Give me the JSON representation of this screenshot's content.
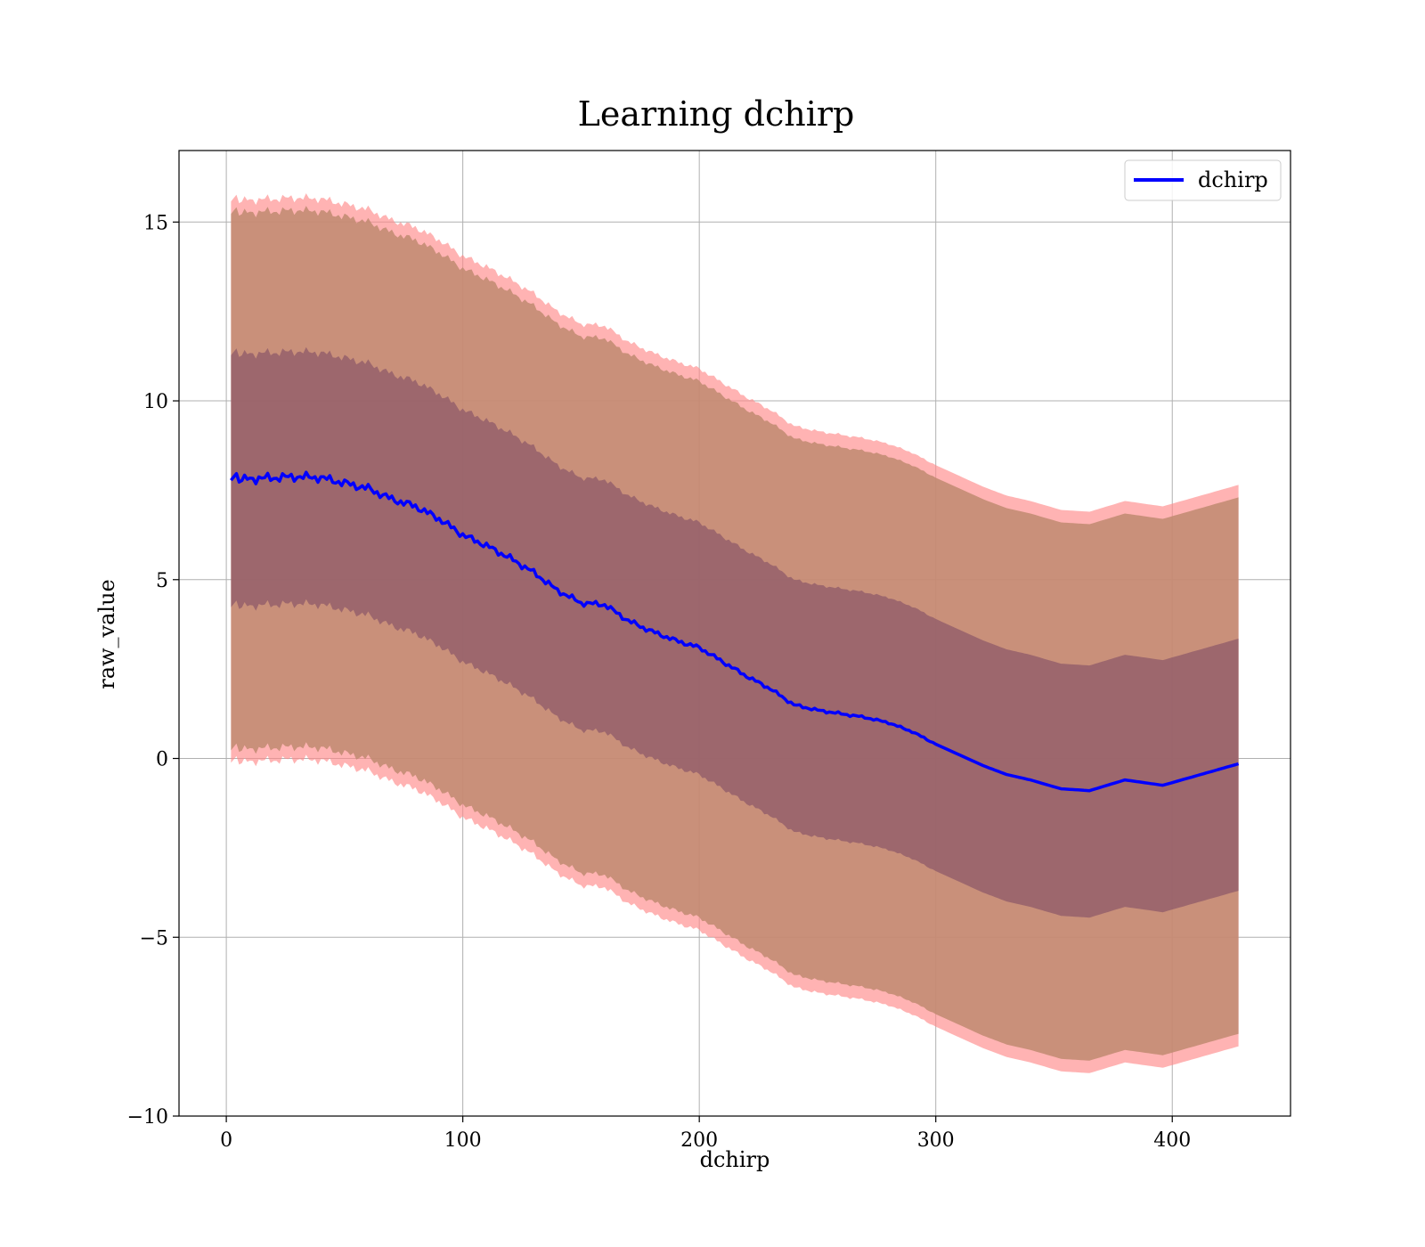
{
  "chart_data": {
    "type": "line",
    "title": "Learning dchirp",
    "xlabel": "dchirp",
    "ylabel": "raw_value",
    "xlim": [
      -20,
      450
    ],
    "ylim": [
      -10,
      17
    ],
    "xticks": [
      0,
      100,
      200,
      300,
      400
    ],
    "yticks": [
      -10,
      -5,
      0,
      5,
      10,
      15
    ],
    "ytick_labels": [
      "−10",
      "−5",
      "0",
      "5",
      "10",
      "15"
    ],
    "grid": true,
    "legend_position": "top-right",
    "series": [
      {
        "name": "dchirp",
        "color": "#0000ff",
        "x": [
          2,
          10,
          20,
          30,
          40,
          50,
          60,
          70,
          80,
          90,
          100,
          110,
          120,
          130,
          140,
          150,
          160,
          170,
          180,
          190,
          200,
          210,
          220,
          230,
          240,
          250,
          260,
          270,
          280,
          290,
          300,
          310,
          320,
          330,
          340,
          353,
          365,
          380,
          396,
          412,
          428
        ],
        "values": [
          7.85,
          7.82,
          7.85,
          7.88,
          7.85,
          7.7,
          7.55,
          7.25,
          7.05,
          6.7,
          6.25,
          5.95,
          5.6,
          5.2,
          4.7,
          4.35,
          4.3,
          3.85,
          3.55,
          3.3,
          3.1,
          2.7,
          2.3,
          1.95,
          1.5,
          1.35,
          1.25,
          1.15,
          1.0,
          0.75,
          0.4,
          0.1,
          -0.2,
          -0.45,
          -0.6,
          -0.85,
          -0.9,
          -0.6,
          -0.75,
          -0.45,
          -0.15
        ]
      }
    ],
    "bands": [
      {
        "name": "band-outer-light",
        "color": "#ff8a8a",
        "opacity": 0.65,
        "upper_offset": 7.8,
        "lower_offset": -7.9
      },
      {
        "name": "band-outer",
        "color": "#c08a70",
        "opacity": 0.85,
        "upper_offset": 7.45,
        "lower_offset": -7.55
      },
      {
        "name": "band-inner",
        "color": "#8e5a6a",
        "opacity": 0.75,
        "upper_offset": 3.5,
        "lower_offset": -3.55
      }
    ]
  }
}
